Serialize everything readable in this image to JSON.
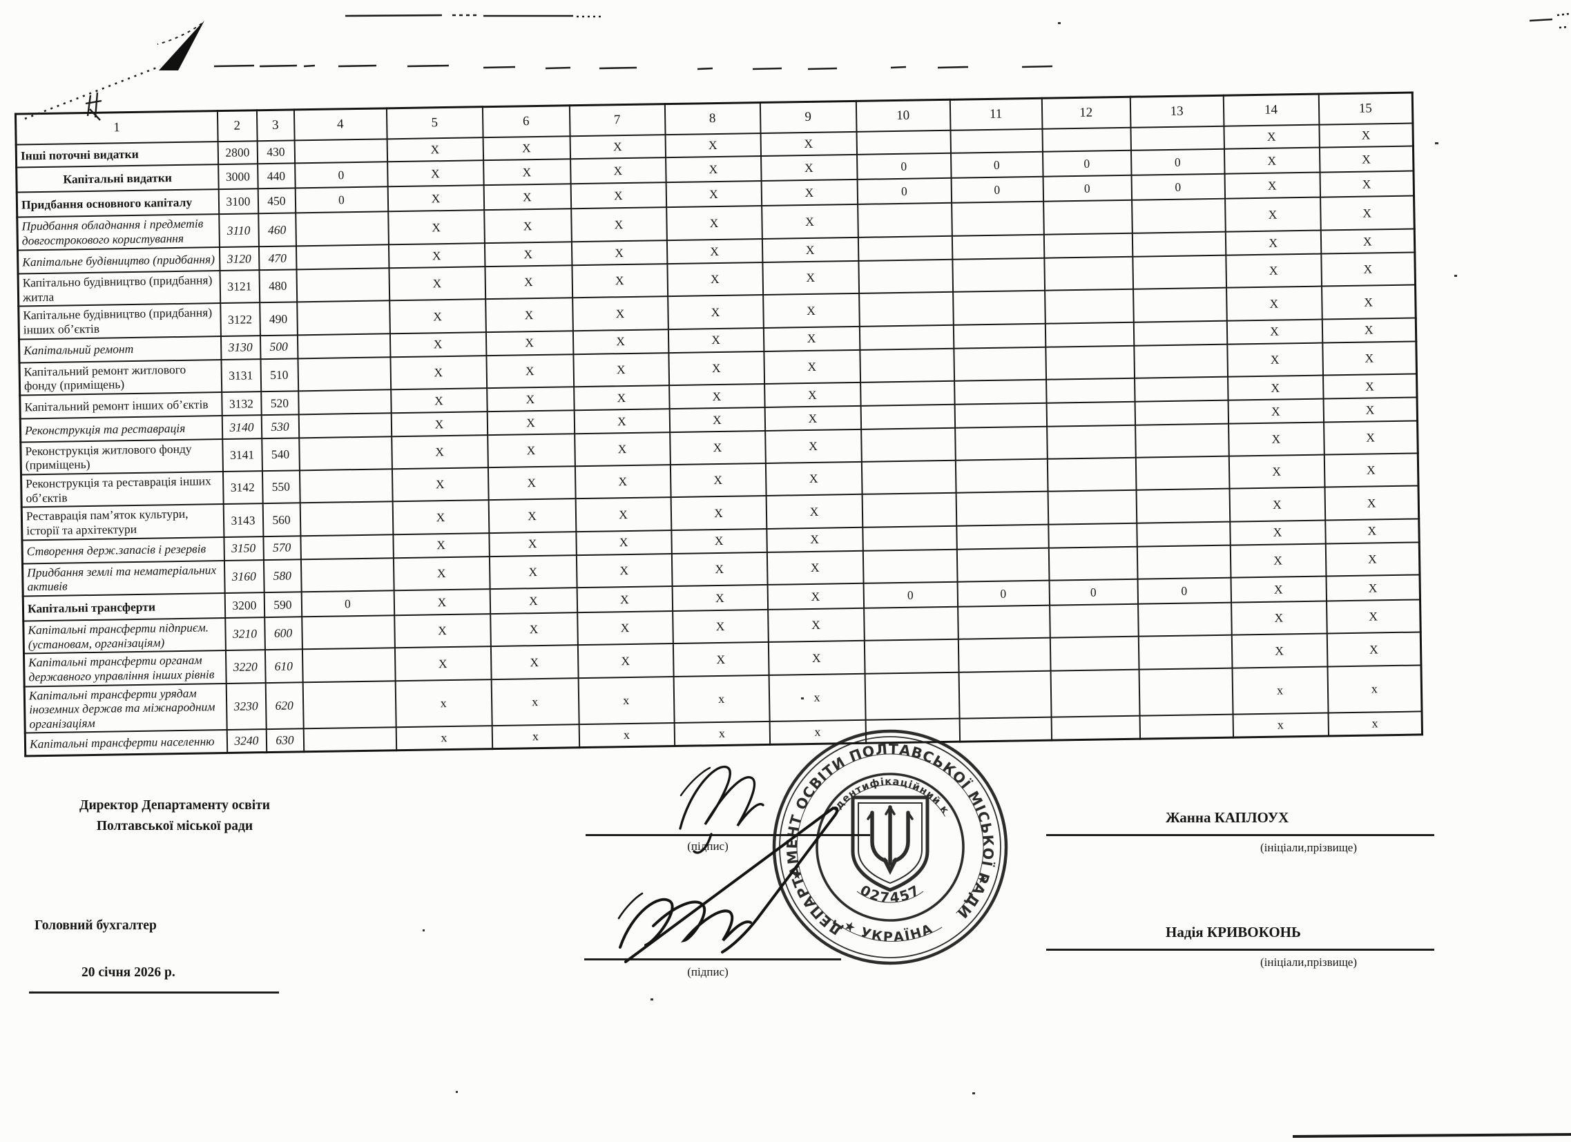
{
  "table": {
    "header": [
      "1",
      "2",
      "3",
      "4",
      "5",
      "6",
      "7",
      "8",
      "9",
      "10",
      "11",
      "12",
      "13",
      "14",
      "15"
    ],
    "rows": [
      {
        "label": "Інші поточні видатки",
        "code": "2800",
        "num": "430",
        "style": "bold",
        "cols": [
          "",
          "X",
          "X",
          "X",
          "X",
          "X",
          "",
          "",
          "",
          "",
          "X",
          "X"
        ]
      },
      {
        "label": "Капітальні видатки",
        "code": "3000",
        "num": "440",
        "style": "bold center",
        "cols": [
          "0",
          "X",
          "X",
          "X",
          "X",
          "X",
          "0",
          "0",
          "0",
          "0",
          "X",
          "X"
        ]
      },
      {
        "label": "Придбання основного капіталу",
        "code": "3100",
        "num": "450",
        "style": "bold",
        "cols": [
          "0",
          "X",
          "X",
          "X",
          "X",
          "X",
          "0",
          "0",
          "0",
          "0",
          "X",
          "X"
        ]
      },
      {
        "label": "Придбання обладнання і предметів довгострокового користування",
        "code": "3110",
        "num": "460",
        "style": "italic",
        "cols": [
          "",
          "X",
          "X",
          "X",
          "X",
          "X",
          "",
          "",
          "",
          "",
          "X",
          "X"
        ]
      },
      {
        "label": "Капітальне будівництво (придбання)",
        "code": "3120",
        "num": "470",
        "style": "italic",
        "cols": [
          "",
          "X",
          "X",
          "X",
          "X",
          "X",
          "",
          "",
          "",
          "",
          "X",
          "X"
        ]
      },
      {
        "label": "Капітально будівництво  (придбання) житла",
        "code": "3121",
        "num": "480",
        "style": "",
        "cols": [
          "",
          "X",
          "X",
          "X",
          "X",
          "X",
          "",
          "",
          "",
          "",
          "X",
          "X"
        ]
      },
      {
        "label": "Капітальне будівництво (придбання) інших об’єктів",
        "code": "3122",
        "num": "490",
        "style": "",
        "cols": [
          "",
          "X",
          "X",
          "X",
          "X",
          "X",
          "",
          "",
          "",
          "",
          "X",
          "X"
        ]
      },
      {
        "label": "Капітальний ремонт",
        "code": "3130",
        "num": "500",
        "style": "italic",
        "cols": [
          "",
          "X",
          "X",
          "X",
          "X",
          "X",
          "",
          "",
          "",
          "",
          "X",
          "X"
        ]
      },
      {
        "label": "Капітальний ремонт житлового фонду (приміщень)",
        "code": "3131",
        "num": "510",
        "style": "",
        "cols": [
          "",
          "X",
          "X",
          "X",
          "X",
          "X",
          "",
          "",
          "",
          "",
          "X",
          "X"
        ]
      },
      {
        "label": "Капітальний ремонт інших об’єктів",
        "code": "3132",
        "num": "520",
        "style": "",
        "cols": [
          "",
          "X",
          "X",
          "X",
          "X",
          "X",
          "",
          "",
          "",
          "",
          "X",
          "X"
        ]
      },
      {
        "label": "Реконструкція та реставрація",
        "code": "3140",
        "num": "530",
        "style": "italic",
        "cols": [
          "",
          "X",
          "X",
          "X",
          "X",
          "X",
          "",
          "",
          "",
          "",
          "X",
          "X"
        ]
      },
      {
        "label": "Реконструкція житлового фонду (приміщень)",
        "code": "3141",
        "num": "540",
        "style": "",
        "cols": [
          "",
          "X",
          "X",
          "X",
          "X",
          "X",
          "",
          "",
          "",
          "",
          "X",
          "X"
        ]
      },
      {
        "label": "Реконструкція та реставрація інших об’єктів",
        "code": "3142",
        "num": "550",
        "style": "",
        "cols": [
          "",
          "X",
          "X",
          "X",
          "X",
          "X",
          "",
          "",
          "",
          "",
          "X",
          "X"
        ]
      },
      {
        "label": "Реставрація пам’яток культури, історії та архітектури",
        "code": "3143",
        "num": "560",
        "style": "",
        "cols": [
          "",
          "X",
          "X",
          "X",
          "X",
          "X",
          "",
          "",
          "",
          "",
          "X",
          "X"
        ]
      },
      {
        "label": "Створення держ.запасів і резервів",
        "code": "3150",
        "num": "570",
        "style": "italic",
        "cols": [
          "",
          "X",
          "X",
          "X",
          "X",
          "X",
          "",
          "",
          "",
          "",
          "X",
          "X"
        ]
      },
      {
        "label": "Придбання землі та нематеріальних активів",
        "code": "3160",
        "num": "580",
        "style": "italic",
        "cols": [
          "",
          "X",
          "X",
          "X",
          "X",
          "X",
          "",
          "",
          "",
          "",
          "X",
          "X"
        ]
      },
      {
        "label": "Капітальні трансферти",
        "code": "3200",
        "num": "590",
        "style": "bold",
        "cols": [
          "0",
          "X",
          "X",
          "X",
          "X",
          "X",
          "0",
          "0",
          "0",
          "0",
          "X",
          "X"
        ]
      },
      {
        "label": "Капітальні трансферти підприєм.(установам, організаціям)",
        "code": "3210",
        "num": "600",
        "style": "italic",
        "cols": [
          "",
          "X",
          "X",
          "X",
          "X",
          "X",
          "",
          "",
          "",
          "",
          "X",
          "X"
        ]
      },
      {
        "label": "Капітальні трансферти  органам державного управління інших рівнів",
        "code": "3220",
        "num": "610",
        "style": "italic",
        "cols": [
          "",
          "X",
          "X",
          "X",
          "X",
          "X",
          "",
          "",
          "",
          "",
          "X",
          "X"
        ]
      },
      {
        "label": "Капітальні трансферти  урядам іноземних держав  та міжнародним організаціям",
        "code": "3230",
        "num": "620",
        "style": "italic small",
        "cols": [
          "",
          "x",
          "x",
          "x",
          "x",
          "x",
          "",
          "",
          "",
          "",
          "x",
          "x"
        ]
      },
      {
        "label": "Капітальні трансферти населенню",
        "code": "3240",
        "num": "630",
        "style": "italic small",
        "cols": [
          "",
          "x",
          "x",
          "x",
          "x",
          "x",
          "",
          "",
          "",
          "",
          "x",
          "x"
        ]
      }
    ]
  },
  "signatures": {
    "left_title_1": "Директор Департаменту освіти",
    "left_title_2": "Полтавської міської ради",
    "accountant_title": "Головний бухгалтер",
    "date": "20 січня 2026 р.",
    "podpys_1": "(підпис)",
    "podpys_2": "(підпис)",
    "name_1": "Жанна КАПЛОУХ",
    "name_2": "Надія КРИВОКОНЬ",
    "initials_1": "(ініціали,прізвище)",
    "initials_2": "(ініціали,прізвище)"
  },
  "stamp": {
    "ring_text": "ДЕПАРТАМЕНТ ОСВІТИ ПОЛТАВСЬКОЇ МІСЬКОЇ РАДИ",
    "bottom_text": "★  УКРАЇНА  ★",
    "inner_top_text": "ідентифікаційний код",
    "code_number": "02745725",
    "ink_color": "#1b1b1b"
  }
}
